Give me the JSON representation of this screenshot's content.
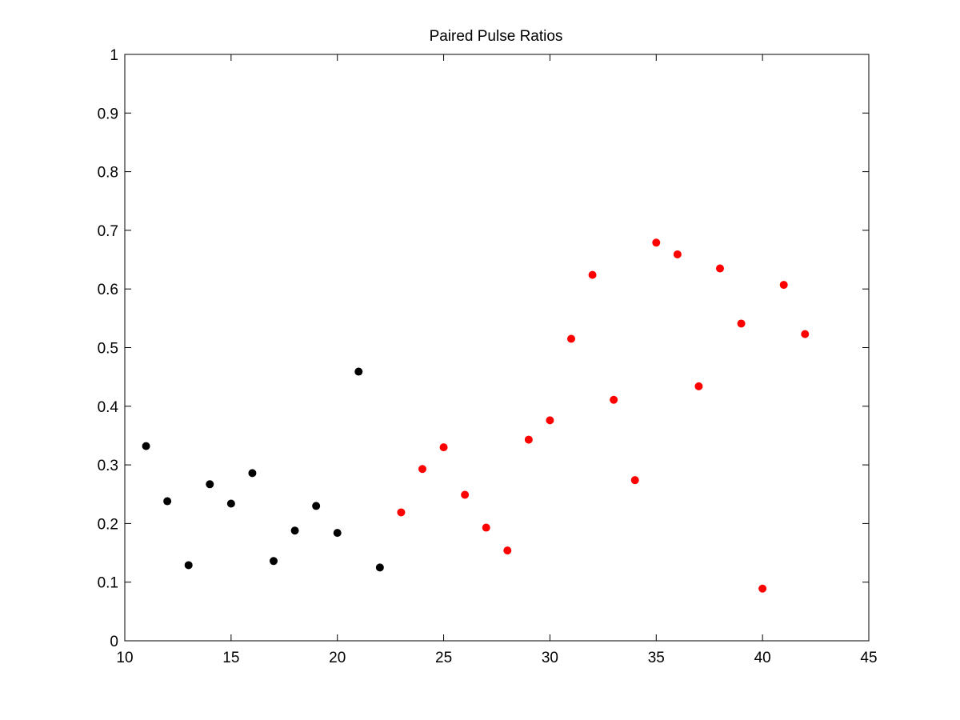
{
  "chart_data": {
    "type": "scatter",
    "title": "Paired Pulse Ratios",
    "xlabel": "",
    "ylabel": "",
    "xlim": [
      10,
      45
    ],
    "ylim": [
      0,
      1
    ],
    "xticks": [
      10,
      15,
      20,
      25,
      30,
      35,
      40,
      45
    ],
    "yticks": [
      0,
      0.1,
      0.2,
      0.3,
      0.4,
      0.5,
      0.6,
      0.7,
      0.8,
      0.9,
      1
    ],
    "grid": false,
    "legend": "none",
    "series": [
      {
        "color": "#000000",
        "x": [
          11,
          12,
          13,
          14,
          15,
          16,
          17,
          18,
          19,
          20,
          21,
          22
        ],
        "y": [
          0.332,
          0.238,
          0.129,
          0.267,
          0.234,
          0.286,
          0.136,
          0.188,
          0.23,
          0.184,
          0.459,
          0.125
        ]
      },
      {
        "color": "#ff0000",
        "x": [
          23,
          24,
          25,
          26,
          27,
          28,
          29,
          30,
          31,
          32,
          33,
          34,
          35,
          36,
          37,
          38,
          39,
          40,
          41,
          42
        ],
        "y": [
          0.219,
          0.293,
          0.33,
          0.249,
          0.193,
          0.154,
          0.343,
          0.376,
          0.515,
          0.624,
          0.411,
          0.274,
          0.679,
          0.659,
          0.434,
          0.635,
          0.541,
          0.089,
          0.607,
          0.523
        ]
      }
    ]
  }
}
